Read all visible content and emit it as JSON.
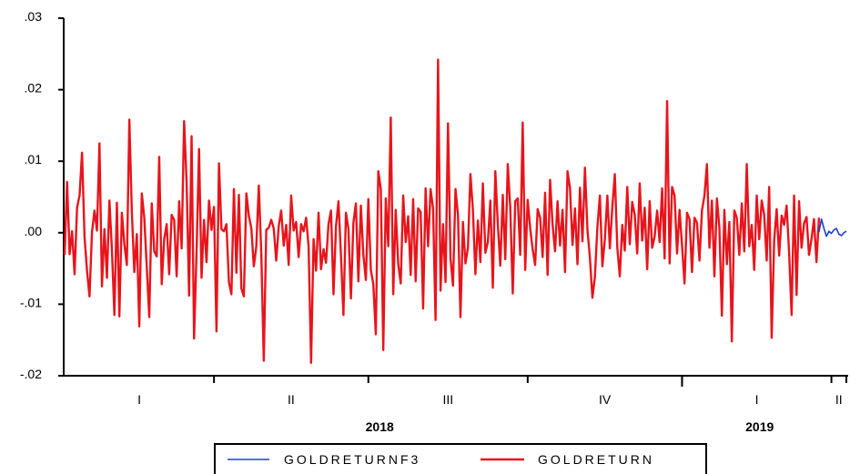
{
  "chart_data": {
    "type": "line",
    "title": "",
    "xlabel": "",
    "ylabel": "",
    "ylim": [
      -0.02,
      0.03
    ],
    "y_ticks": [
      ".03",
      ".02",
      ".01",
      ".00",
      "-.01",
      "-.02"
    ],
    "y_tick_values": [
      0.03,
      0.02,
      0.01,
      0.0,
      -0.01,
      -0.02
    ],
    "x_quarter_labels": [
      "I",
      "II",
      "III",
      "IV",
      "I",
      "II"
    ],
    "x_year_labels": [
      "2018",
      "2019"
    ],
    "n_observations": 315,
    "quarter_boundaries": [
      0,
      60,
      122,
      186,
      248,
      308,
      315
    ],
    "year_boundary": 248,
    "legend_position": "bottom",
    "grid": false,
    "series": [
      {
        "name": "GOLDRETURNF3",
        "color": "#1f3fd0",
        "x": [
          303,
          304,
          305,
          306,
          307,
          308,
          309,
          310,
          311,
          312,
          313,
          314
        ],
        "y": [
          0.0001,
          0.0019,
          0.0006,
          -0.0005,
          0.0002,
          -0.0001,
          0.0004,
          0.0006,
          -0.0002,
          -0.0004,
          0.0,
          0.0002
        ]
      },
      {
        "name": "GOLDRETURN",
        "color": "#e8141b",
        "x_start": 0,
        "values": [
          -0.0031,
          0.0071,
          -0.003,
          0.0002,
          -0.0058,
          0.0035,
          0.0052,
          0.0112,
          -0.0006,
          -0.0053,
          -0.0089,
          0.0001,
          0.0031,
          0.0003,
          0.0125,
          -0.0075,
          0.0005,
          -0.0063,
          0.0045,
          -0.0024,
          -0.0115,
          0.0042,
          -0.0117,
          0.0028,
          -0.0016,
          -0.0045,
          0.0158,
          0.003,
          -0.0055,
          -0.0002,
          -0.0131,
          0.0055,
          0.0021,
          -0.0048,
          -0.0118,
          0.0041,
          -0.0026,
          -0.0033,
          0.0106,
          -0.0072,
          -0.0009,
          0.0012,
          -0.0058,
          0.0025,
          0.0018,
          -0.0061,
          0.0044,
          -0.0022,
          0.0156,
          0.0071,
          -0.0088,
          0.0135,
          -0.0148,
          -0.0027,
          0.0117,
          -0.0063,
          0.0018,
          -0.0041,
          0.0045,
          0.0004,
          0.0036,
          -0.0138,
          0.0097,
          0.0005,
          0.0002,
          0.0012,
          -0.0069,
          -0.0086,
          0.0061,
          -0.0056,
          0.0053,
          -0.0078,
          -0.0089,
          0.0055,
          0.0024,
          0.0006,
          -0.0047,
          -0.0019,
          0.0066,
          -0.0029,
          -0.0179,
          0.0004,
          0.0007,
          0.0018,
          0.0006,
          -0.0039,
          0.0009,
          0.0031,
          -0.0018,
          0.0011,
          -0.0045,
          0.0052,
          0.0003,
          0.0015,
          -0.0034,
          0.0012,
          0.0002,
          0.0021,
          -0.0019,
          -0.0182,
          -0.0009,
          -0.0053,
          0.0028,
          -0.0051,
          -0.0023,
          -0.0042,
          0.0012,
          0.0031,
          -0.0086,
          0.0009,
          0.0044,
          -0.0032,
          -0.0115,
          0.0028,
          0.0005,
          -0.0092,
          0.0014,
          0.0041,
          -0.0068,
          0.0038,
          -0.0031,
          -0.0066,
          0.0047,
          -0.0052,
          -0.0072,
          -0.0142,
          0.0086,
          0.0061,
          -0.0164,
          0.0048,
          -0.0019,
          0.0161,
          -0.0086,
          0.0032,
          -0.0044,
          -0.0071,
          0.0052,
          -0.0013,
          0.0023,
          -0.0059,
          0.0047,
          -0.0068,
          0.0034,
          0.0029,
          -0.0106,
          0.0062,
          -0.0019,
          0.0061,
          0.0034,
          -0.0122,
          0.0242,
          -0.0081,
          0.0012,
          -0.0069,
          0.0153,
          -0.0036,
          -0.0074,
          0.0061,
          0.0025,
          -0.0118,
          0.0015,
          -0.0043,
          -0.0021,
          0.0082,
          0.0032,
          -0.0058,
          0.0017,
          -0.0041,
          0.0069,
          -0.0028,
          -0.0013,
          0.0045,
          -0.0077,
          0.0086,
          0.0012,
          -0.0046,
          0.0053,
          -0.0037,
          0.0096,
          0.0035,
          -0.0085,
          0.0044,
          0.0048,
          -0.0031,
          0.0154,
          -0.0052,
          0.0046,
          0.0006,
          -0.0023,
          -0.0045,
          0.0033,
          0.0021,
          -0.0034,
          0.0056,
          -0.0059,
          0.0074,
          0.0011,
          -0.0026,
          0.0044,
          -0.0018,
          0.0032,
          -0.0055,
          0.0086,
          0.0062,
          -0.0017,
          0.0034,
          -0.0044,
          0.0063,
          -0.0012,
          0.0091,
          0.0004,
          -0.0035,
          -0.0091,
          -0.0062,
          0.0008,
          0.0052,
          -0.0047,
          -0.0009,
          0.0052,
          -0.0022,
          0.0036,
          0.0082,
          -0.0021,
          -0.0061,
          0.0011,
          -0.0025,
          0.0064,
          -0.0016,
          0.0043,
          0.0025,
          -0.0029,
          0.0069,
          -0.0011,
          0.0035,
          -0.0051,
          0.0044,
          -0.0021,
          -0.0005,
          0.0031,
          -0.0013,
          0.0062,
          -0.0036,
          0.0184,
          -0.0043,
          0.0064,
          0.0052,
          -0.0029,
          0.0032,
          -0.0018,
          -0.0071,
          0.0028,
          0.0019,
          -0.0055,
          0.0021,
          0.0014,
          -0.0039,
          0.0031,
          0.0052,
          0.0096,
          -0.0021,
          0.0045,
          -0.0061,
          0.0048,
          0.0007,
          -0.0116,
          0.0032,
          -0.0044,
          0.0015,
          -0.0152,
          0.0031,
          0.0021,
          -0.0031,
          0.0041,
          -0.0026,
          0.0096,
          -0.0019,
          0.0011,
          -0.0052,
          0.0052,
          -0.0009,
          0.0045,
          0.0025,
          -0.0039,
          0.0064,
          -0.0147,
          -0.0011,
          0.0033,
          -0.0032,
          0.0024,
          0.0011,
          0.0038,
          -0.0027,
          -0.0115,
          0.0052,
          -0.0087,
          0.0044,
          -0.0021,
          0.0013,
          0.0022,
          -0.0031,
          -0.0009,
          0.0019,
          -0.0041,
          0.0021
        ]
      }
    ]
  }
}
